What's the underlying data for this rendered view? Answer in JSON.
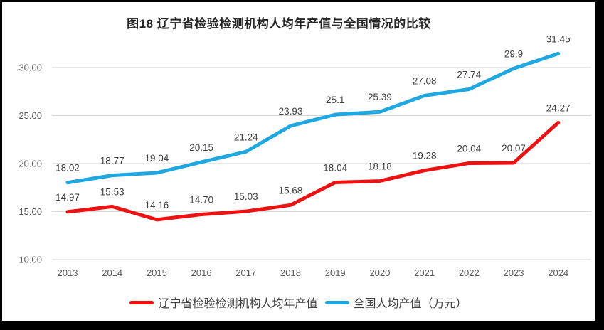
{
  "chart_data": {
    "type": "line",
    "title": "图18 辽宁省检验检测机构人均年产值与全国情况的比较",
    "categories": [
      "2013",
      "2014",
      "2015",
      "2016",
      "2017",
      "2018",
      "2019",
      "2020",
      "2021",
      "2022",
      "2023",
      "2024"
    ],
    "series": [
      {
        "name": "辽宁省检验检测机构人均年产值",
        "color": "#ee1111",
        "values": [
          14.97,
          15.53,
          14.16,
          14.7,
          15.03,
          15.68,
          18.04,
          18.18,
          19.28,
          20.04,
          20.07,
          24.27
        ],
        "labels": [
          "14.97",
          "15.53",
          "14.16",
          "14.70",
          "15.03",
          "15.68",
          "18.04",
          "18.18",
          "19.28",
          "20.04",
          "20.07",
          "24.27"
        ]
      },
      {
        "name": "全国人均产值（万元）",
        "color": "#1ea7e1",
        "values": [
          18.02,
          18.77,
          19.04,
          20.15,
          21.24,
          23.93,
          25.1,
          25.39,
          27.08,
          27.74,
          29.9,
          31.45
        ],
        "labels": [
          "18.02",
          "18.77",
          "19.04",
          "20.15",
          "21.24",
          "23.93",
          "25.1",
          "25.39",
          "27.08",
          "27.74",
          "29.9",
          "31.45"
        ]
      }
    ],
    "y_axis": {
      "min": 10,
      "max": 32.5,
      "ticks": [
        {
          "value": 10,
          "label": "10.00"
        },
        {
          "value": 15,
          "label": "15.00"
        },
        {
          "value": 20,
          "label": "20.00"
        },
        {
          "value": 25,
          "label": "25.00"
        },
        {
          "value": 30,
          "label": "30.00"
        }
      ]
    },
    "grid": true,
    "legend_position": "bottom",
    "colors": {
      "gridline": "#d9d9d9",
      "axis_text": "#595959",
      "data_label_text": "#404040",
      "title_text": "#262626"
    }
  }
}
